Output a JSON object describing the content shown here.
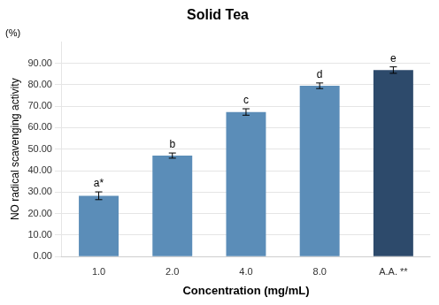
{
  "chart_data": {
    "type": "bar",
    "title": "Solid Tea",
    "ylabel": "NO radical scavenging activity",
    "ylabel_unit": "(%)",
    "xlabel": "Concentration (mg/mL)",
    "categories": [
      "1.0",
      "2.0",
      "4.0",
      "8.0",
      "A.A. **"
    ],
    "values": [
      28.3,
      47.0,
      67.3,
      79.5,
      86.8
    ],
    "errors": [
      1.8,
      1.2,
      1.5,
      1.3,
      1.5
    ],
    "annotations": [
      "a*",
      "b",
      "c",
      "d",
      "e"
    ],
    "colors": [
      "#5b8db8",
      "#5b8db8",
      "#5b8db8",
      "#5b8db8",
      "#2d4a6b"
    ],
    "ylim": [
      0,
      100
    ],
    "yticks": [
      {
        "value": 0,
        "label": "0.00"
      },
      {
        "value": 10,
        "label": "10.00"
      },
      {
        "value": 20,
        "label": "20.00"
      },
      {
        "value": 30,
        "label": "30.00"
      },
      {
        "value": 40,
        "label": "40.00"
      },
      {
        "value": 50,
        "label": "50.00"
      },
      {
        "value": 60,
        "label": "60.00"
      },
      {
        "value": 70,
        "label": "70.00"
      },
      {
        "value": 80,
        "label": "80.00"
      },
      {
        "value": 90,
        "label": "90.00"
      }
    ],
    "grid": true
  }
}
